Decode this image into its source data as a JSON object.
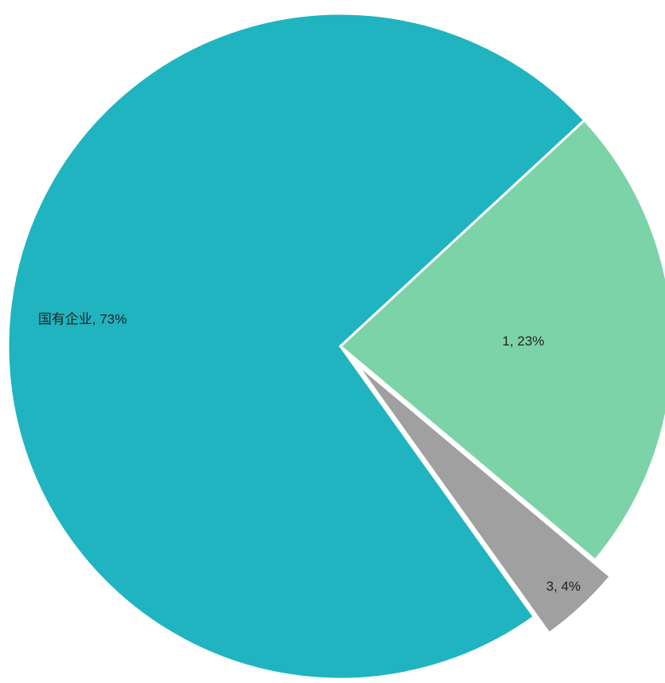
{
  "chart_data": {
    "type": "pie",
    "title": "",
    "slices": [
      {
        "label": "国有企业, 73%",
        "value": 73,
        "color": "#1fb4c0",
        "exploded": false
      },
      {
        "label": "1, 23%",
        "value": 23,
        "color": "#7dd3a8",
        "exploded": false
      },
      {
        "label": "3, 4%",
        "value": 4,
        "color": "#a0a0a0",
        "exploded": true
      }
    ],
    "legend": "none",
    "start": "bottom-right, clockwise"
  }
}
